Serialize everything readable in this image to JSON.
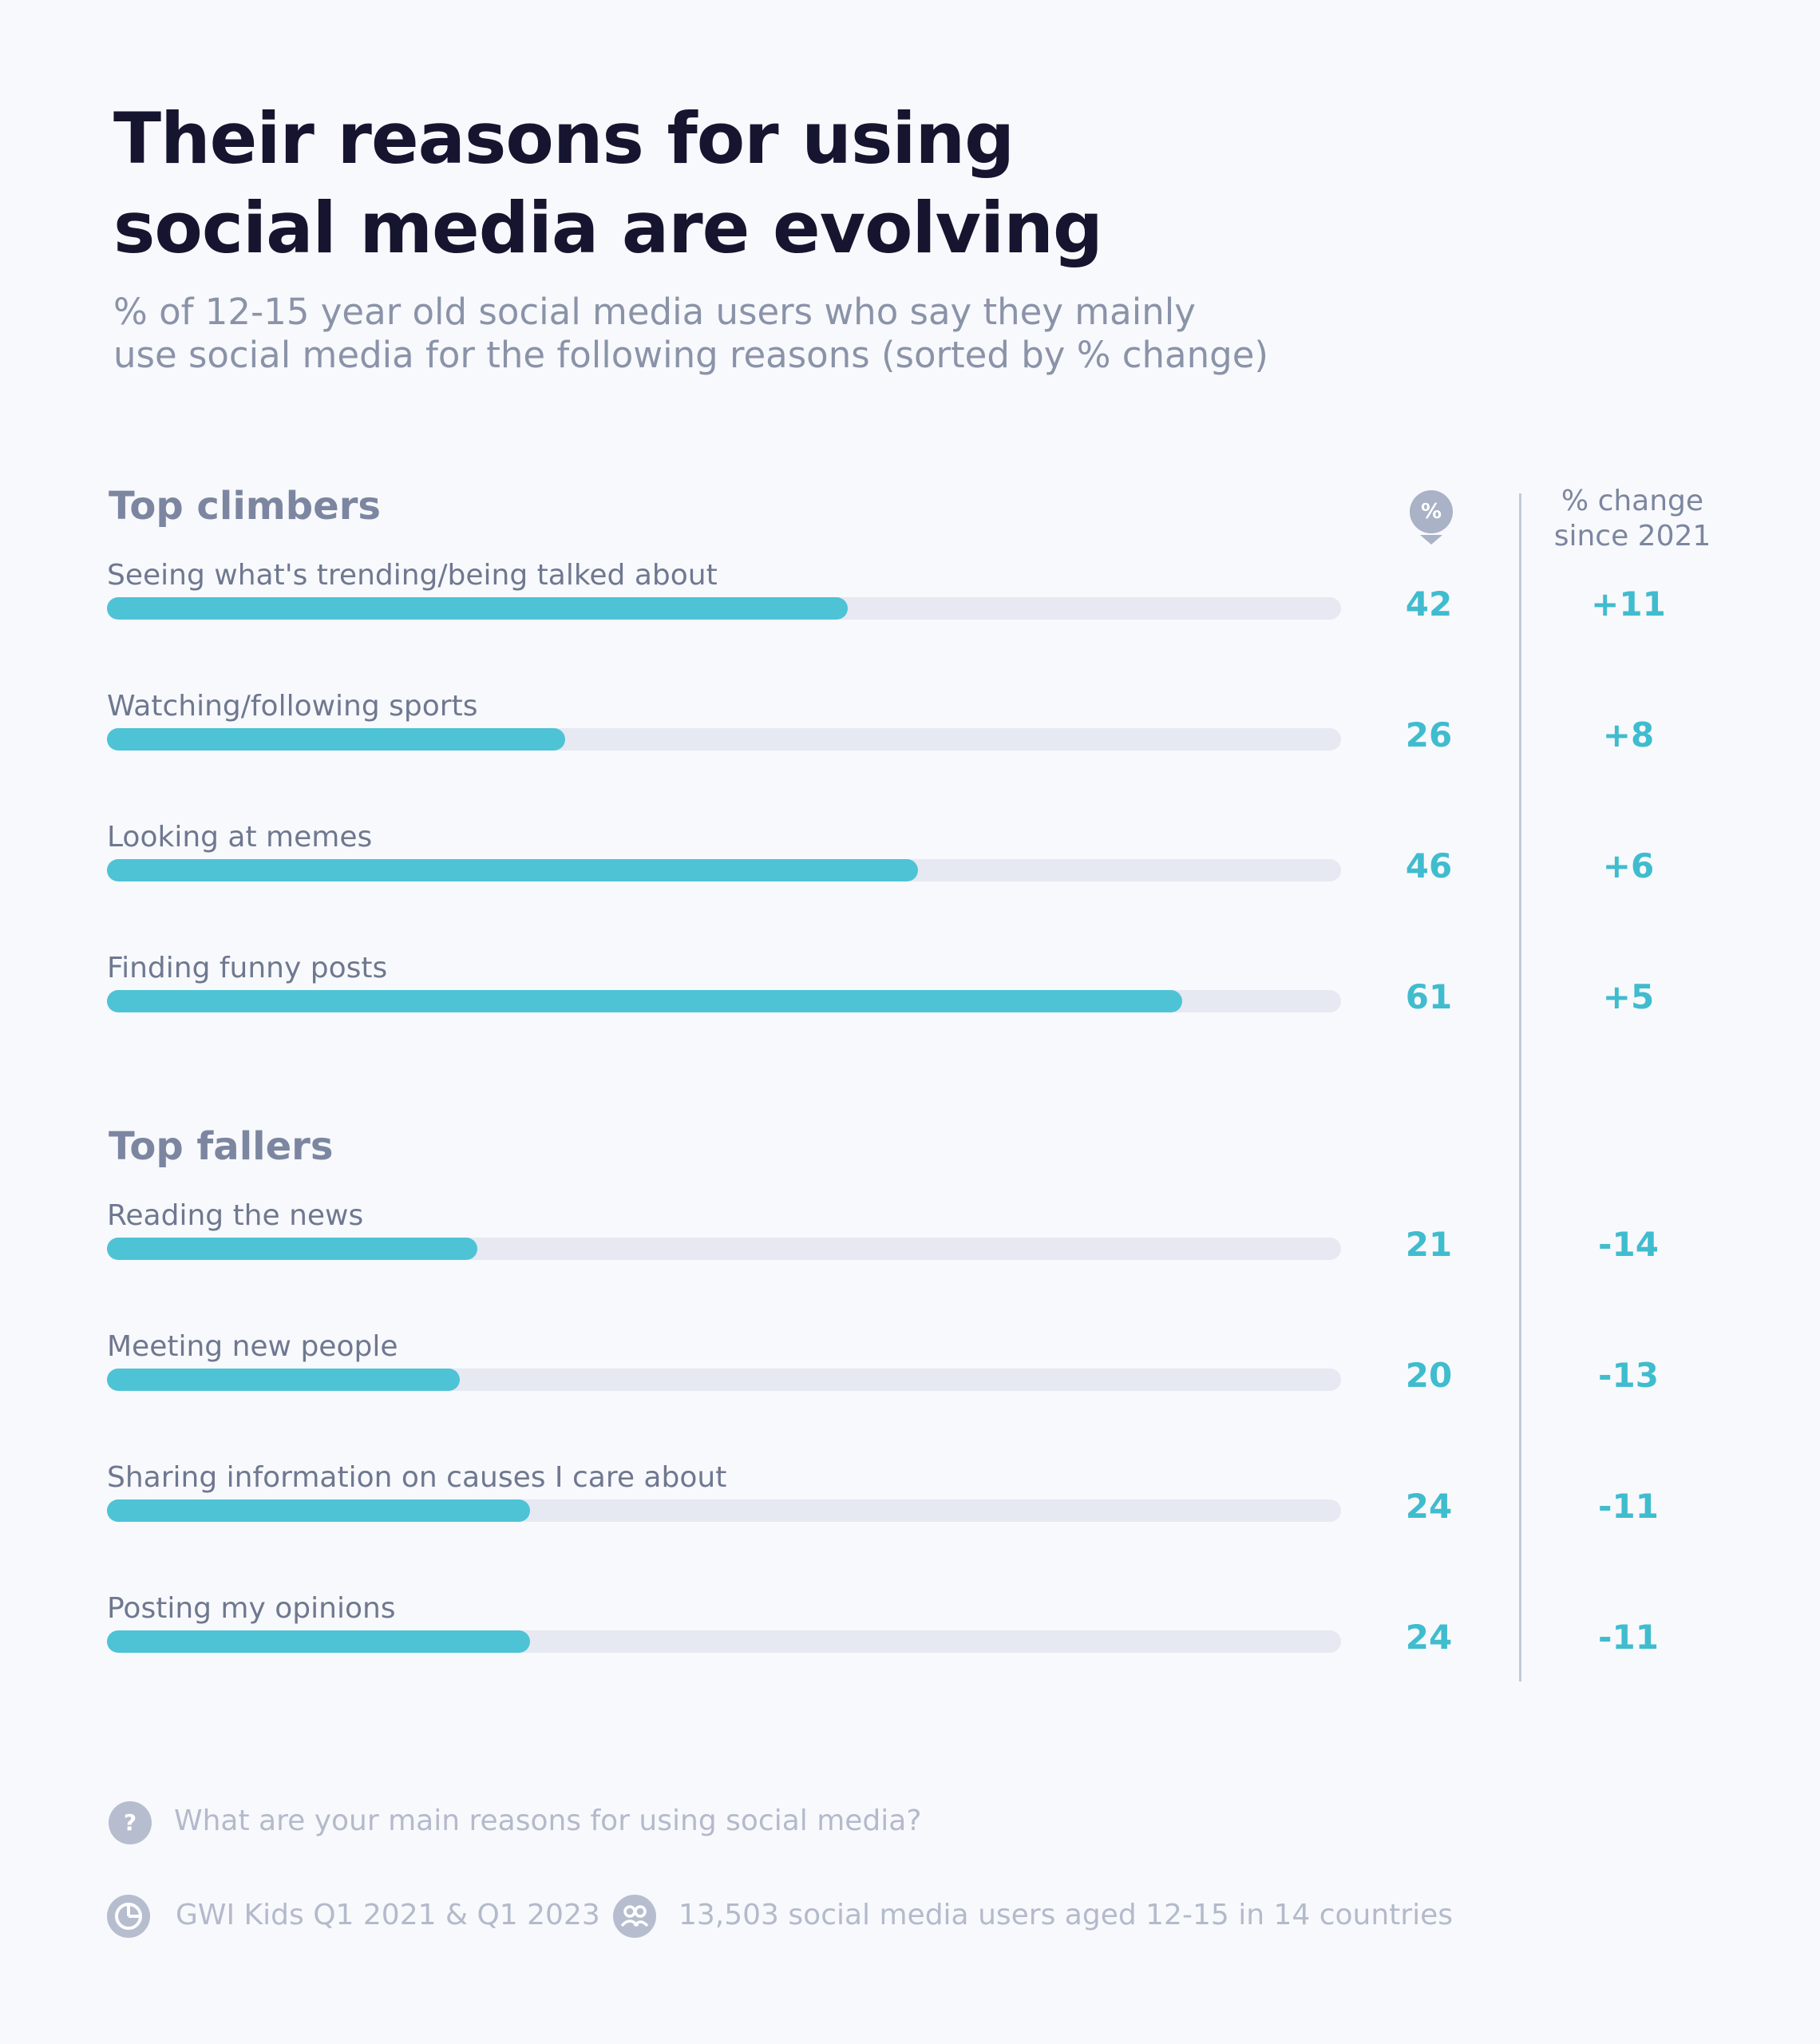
{
  "title_lines": [
    "Their reasons for using",
    "social media are evolving"
  ],
  "subtitle_lines": [
    "% of 12-15 year old social media users who say they mainly",
    "use social media for the following reasons (sorted by % change)"
  ],
  "columns": {
    "pct_icon": "%",
    "change_header_lines": [
      "% change",
      "since 2021"
    ]
  },
  "colors": {
    "bar_fill": "#4ec3d6",
    "bar_track": "#e6e9f2",
    "value_text": "#40bccf",
    "title_text": "#161530"
  },
  "chart_data": {
    "type": "bar",
    "orientation": "horizontal",
    "xlim": [
      0,
      70
    ],
    "groups": [
      {
        "name": "Top climbers",
        "items": [
          {
            "label": "Seeing what's trending/being talked about",
            "value": 42,
            "change": "+11"
          },
          {
            "label": "Watching/following sports",
            "value": 26,
            "change": "+8"
          },
          {
            "label": "Looking at memes",
            "value": 46,
            "change": "+6"
          },
          {
            "label": "Finding funny posts",
            "value": 61,
            "change": "+5"
          }
        ]
      },
      {
        "name": "Top fallers",
        "items": [
          {
            "label": "Reading the news",
            "value": 21,
            "change": "-14"
          },
          {
            "label": "Meeting new people",
            "value": 20,
            "change": "-13"
          },
          {
            "label": "Sharing information on causes I care about",
            "value": 24,
            "change": "-11"
          },
          {
            "label": "Posting my opinions",
            "value": 24,
            "change": "-11"
          }
        ]
      }
    ]
  },
  "footer": {
    "question_icon": "question-icon",
    "question_glyph": "?",
    "question": "What are your main reasons for using social media?",
    "source_icon": "pie-chart-icon",
    "source": "GWI Kids Q1 2021 & Q1 2023",
    "sample_icon": "people-icon",
    "sample": "13,503 social media users aged 12-15 in 14 countries"
  }
}
